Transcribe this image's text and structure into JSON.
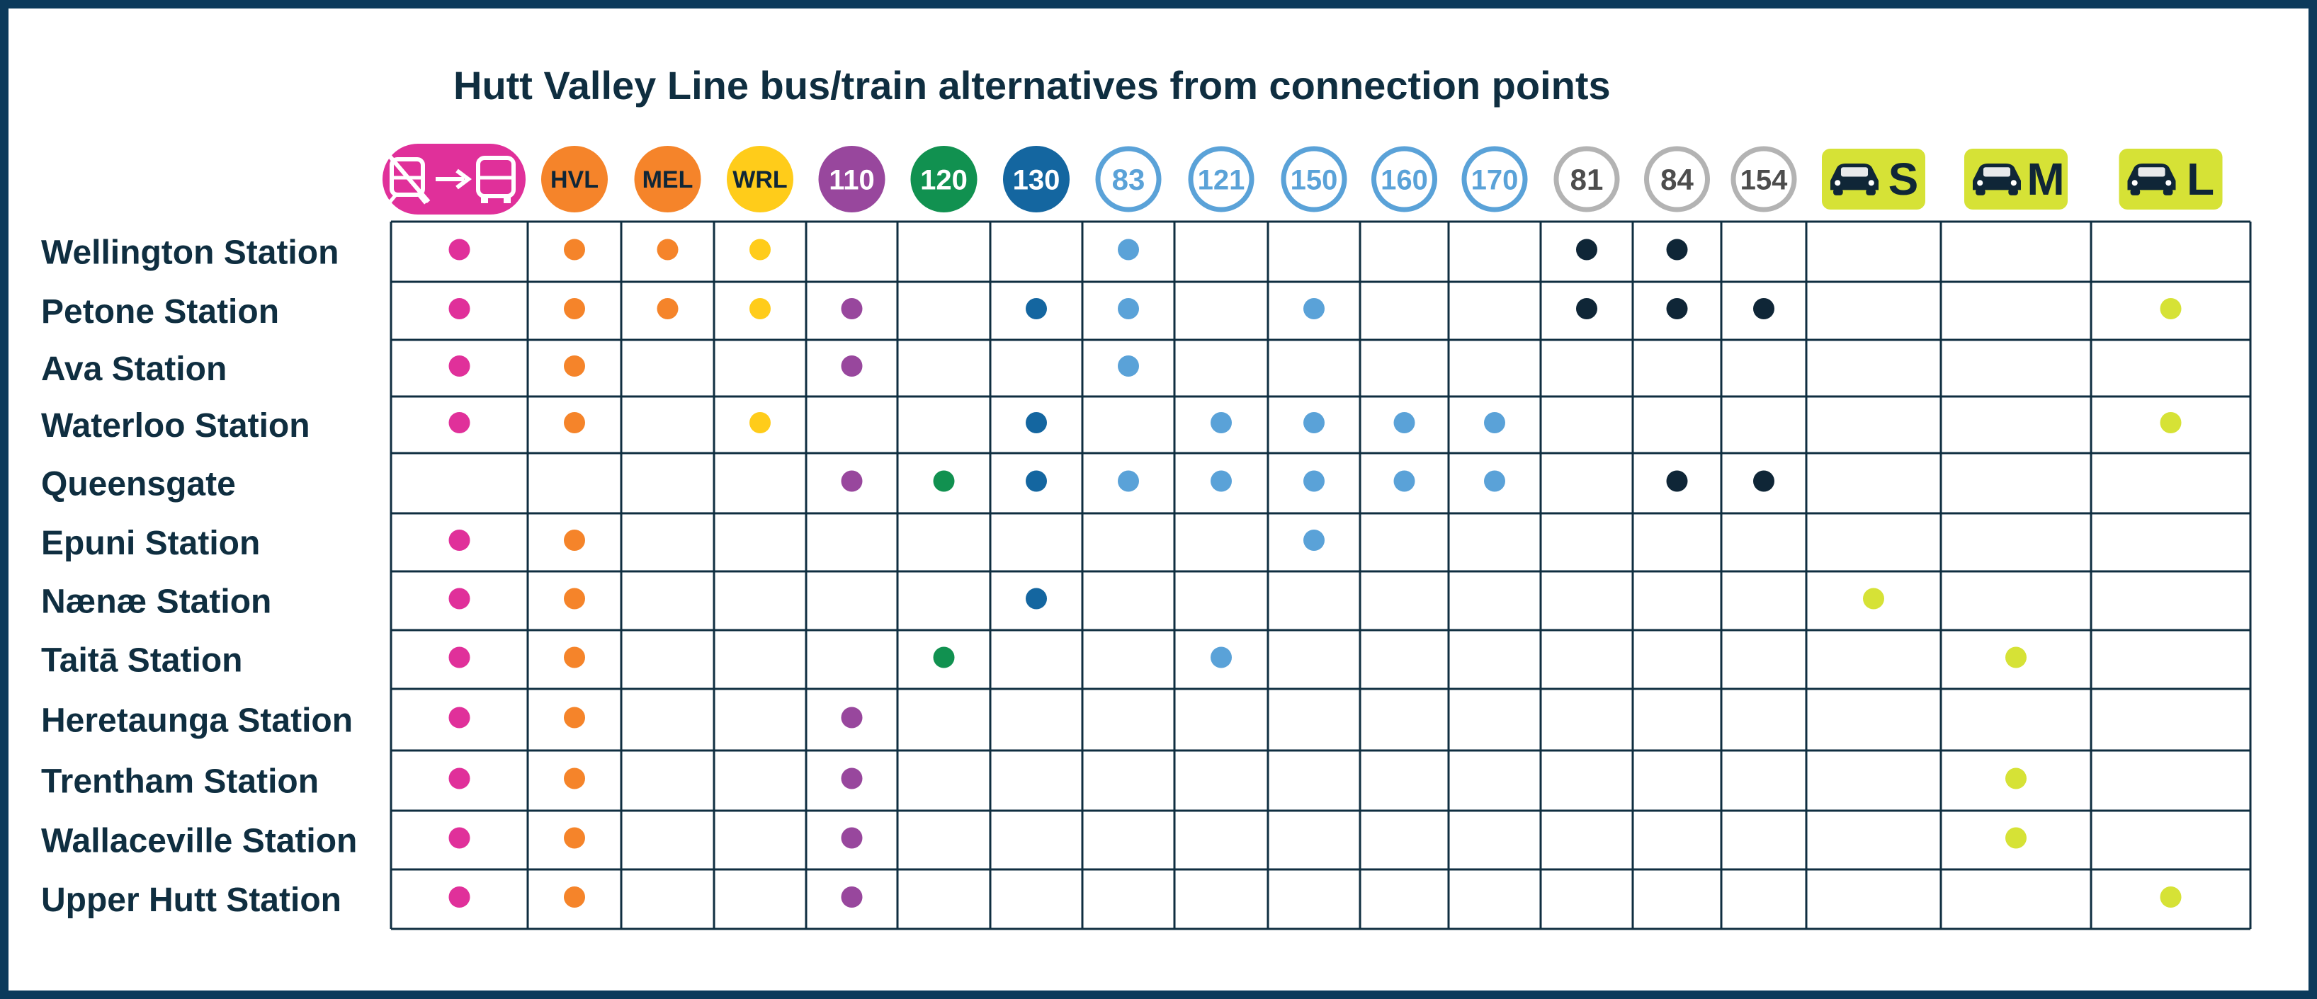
{
  "title": "Hutt Valley Line bus/train alternatives from connection points",
  "colors": {
    "frame": "#0c3a5b",
    "grid": "#0f2e40",
    "text": "#0f2e40",
    "rail_replacement": "#e0309a",
    "train": "#f5842a",
    "wrl": "#ffcc1a",
    "route_110": "#98479d",
    "route_120": "#119150",
    "route_130": "#1466a0",
    "light_blue": "#5aa2d8",
    "grey": "#b3b3b3",
    "dark": "#0f2637",
    "taxi": "#d6e236"
  },
  "columns": [
    {
      "id": "rail-replacement",
      "label": "",
      "icon": "train-to-bus-icon",
      "style": "pill",
      "color": "#e0309a",
      "dot": "#e0309a"
    },
    {
      "id": "hvl",
      "label": "HVL",
      "style": "filled",
      "color": "#f5842a",
      "text_color": "#0f2637",
      "dot": "#f5842a"
    },
    {
      "id": "mel",
      "label": "MEL",
      "style": "filled",
      "color": "#f5842a",
      "text_color": "#0f2637",
      "dot": "#f5842a"
    },
    {
      "id": "wrl",
      "label": "WRL",
      "style": "filled",
      "color": "#ffcc1a",
      "text_color": "#0f2637",
      "dot": "#ffcc1a"
    },
    {
      "id": "110",
      "label": "110",
      "style": "filled",
      "color": "#98479d",
      "text_color": "#ffffff",
      "dot": "#98479d"
    },
    {
      "id": "120",
      "label": "120",
      "style": "filled",
      "color": "#119150",
      "text_color": "#ffffff",
      "dot": "#119150"
    },
    {
      "id": "130",
      "label": "130",
      "style": "filled",
      "color": "#1466a0",
      "text_color": "#ffffff",
      "dot": "#1466a0"
    },
    {
      "id": "83",
      "label": "83",
      "style": "outline",
      "color": "#5aa2d8",
      "text_color": "#5aa2d8",
      "dot": "#5aa2d8"
    },
    {
      "id": "121",
      "label": "121",
      "style": "outline",
      "color": "#5aa2d8",
      "text_color": "#5aa2d8",
      "dot": "#5aa2d8"
    },
    {
      "id": "150",
      "label": "150",
      "style": "outline",
      "color": "#5aa2d8",
      "text_color": "#5aa2d8",
      "dot": "#5aa2d8"
    },
    {
      "id": "160",
      "label": "160",
      "style": "outline",
      "color": "#5aa2d8",
      "text_color": "#5aa2d8",
      "dot": "#5aa2d8"
    },
    {
      "id": "170",
      "label": "170",
      "style": "outline",
      "color": "#5aa2d8",
      "text_color": "#5aa2d8",
      "dot": "#5aa2d8"
    },
    {
      "id": "81",
      "label": "81",
      "style": "outline",
      "color": "#b3b3b3",
      "text_color": "#4d4d4d",
      "dot": "#0f2637"
    },
    {
      "id": "84",
      "label": "84",
      "style": "outline",
      "color": "#b3b3b3",
      "text_color": "#4d4d4d",
      "dot": "#0f2637"
    },
    {
      "id": "154",
      "label": "154",
      "style": "outline",
      "color": "#b3b3b3",
      "text_color": "#4d4d4d",
      "dot": "#0f2637"
    },
    {
      "id": "taxi-s",
      "label": "S",
      "icon": "car-icon",
      "style": "taxi",
      "color": "#d6e236",
      "text_color": "#0f2637",
      "dot": "#d6e236"
    },
    {
      "id": "taxi-m",
      "label": "M",
      "icon": "car-icon",
      "style": "taxi",
      "color": "#d6e236",
      "text_color": "#0f2637",
      "dot": "#d6e236"
    },
    {
      "id": "taxi-l",
      "label": "L",
      "icon": "car-icon",
      "style": "taxi",
      "color": "#d6e236",
      "text_color": "#0f2637",
      "dot": "#d6e236"
    }
  ],
  "rows": [
    {
      "station": "Wellington Station",
      "services": [
        "rail-replacement",
        "hvl",
        "mel",
        "wrl",
        "83",
        "81",
        "84"
      ]
    },
    {
      "station": "Petone Station",
      "services": [
        "rail-replacement",
        "hvl",
        "mel",
        "wrl",
        "110",
        "130",
        "83",
        "150",
        "81",
        "84",
        "154",
        "taxi-l"
      ]
    },
    {
      "station": "Ava Station",
      "services": [
        "rail-replacement",
        "hvl",
        "110",
        "83"
      ]
    },
    {
      "station": "Waterloo Station",
      "services": [
        "rail-replacement",
        "hvl",
        "wrl",
        "130",
        "121",
        "150",
        "160",
        "170",
        "taxi-l"
      ]
    },
    {
      "station": "Queensgate",
      "services": [
        "110",
        "120",
        "130",
        "83",
        "121",
        "150",
        "160",
        "170",
        "84",
        "154"
      ]
    },
    {
      "station": "Epuni Station",
      "services": [
        "rail-replacement",
        "hvl",
        "150"
      ]
    },
    {
      "station": "Nænæ Station",
      "services": [
        "rail-replacement",
        "hvl",
        "130",
        "taxi-s"
      ]
    },
    {
      "station": "Taitā Station",
      "services": [
        "rail-replacement",
        "hvl",
        "120",
        "121",
        "taxi-m"
      ]
    },
    {
      "station": "Heretaunga Station",
      "services": [
        "rail-replacement",
        "hvl",
        "110"
      ]
    },
    {
      "station": "Trentham Station",
      "services": [
        "rail-replacement",
        "hvl",
        "110",
        "taxi-m"
      ]
    },
    {
      "station": "Wallaceville Station",
      "services": [
        "rail-replacement",
        "hvl",
        "110",
        "taxi-m"
      ]
    },
    {
      "station": "Upper Hutt Station",
      "services": [
        "rail-replacement",
        "hvl",
        "110",
        "taxi-l"
      ]
    }
  ]
}
